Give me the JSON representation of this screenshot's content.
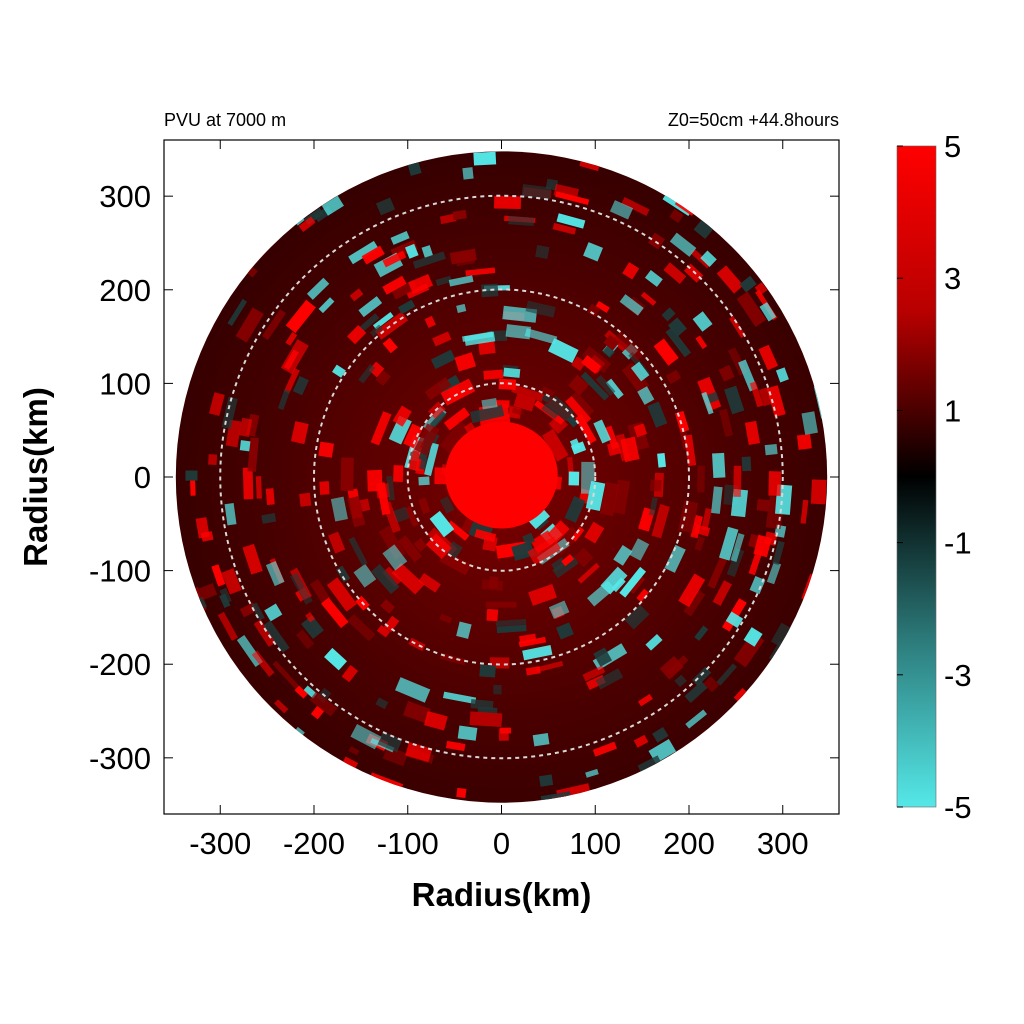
{
  "header": {
    "left_title": "PVU at  7000 m",
    "right_title": "Z0=50cm  +44.8hours"
  },
  "chart_data": {
    "type": "heatmap",
    "title": "PVU at  7000 m",
    "subtitle": "Z0=50cm  +44.8hours",
    "xlabel": "Radius(km)",
    "ylabel": "Radius(km)",
    "xlim": [
      -360,
      360
    ],
    "ylim": [
      -360,
      360
    ],
    "x_ticks": [
      -300,
      -200,
      -100,
      0,
      100,
      200,
      300
    ],
    "y_ticks": [
      300,
      200,
      100,
      0,
      -100,
      -200,
      -300
    ],
    "colorbar": {
      "range": [
        -5,
        5
      ],
      "ticks": [
        5,
        3,
        1,
        -1,
        -3,
        -5
      ],
      "colors": {
        "max": "#ff0000",
        "mid": "#000000",
        "min": "#55e8e8"
      }
    },
    "reference_circles_radius_km": [
      100,
      200,
      300
    ],
    "domain_radius_km": 360,
    "core": {
      "center_km": [
        0,
        20
      ],
      "radius_km": 60,
      "value": 5
    },
    "colors": {
      "positive_pv": "#ff0000",
      "background_pv": "#3a0000",
      "negative_pv": "#55e8e8",
      "reference_circles": "#d8d8d8"
    }
  }
}
